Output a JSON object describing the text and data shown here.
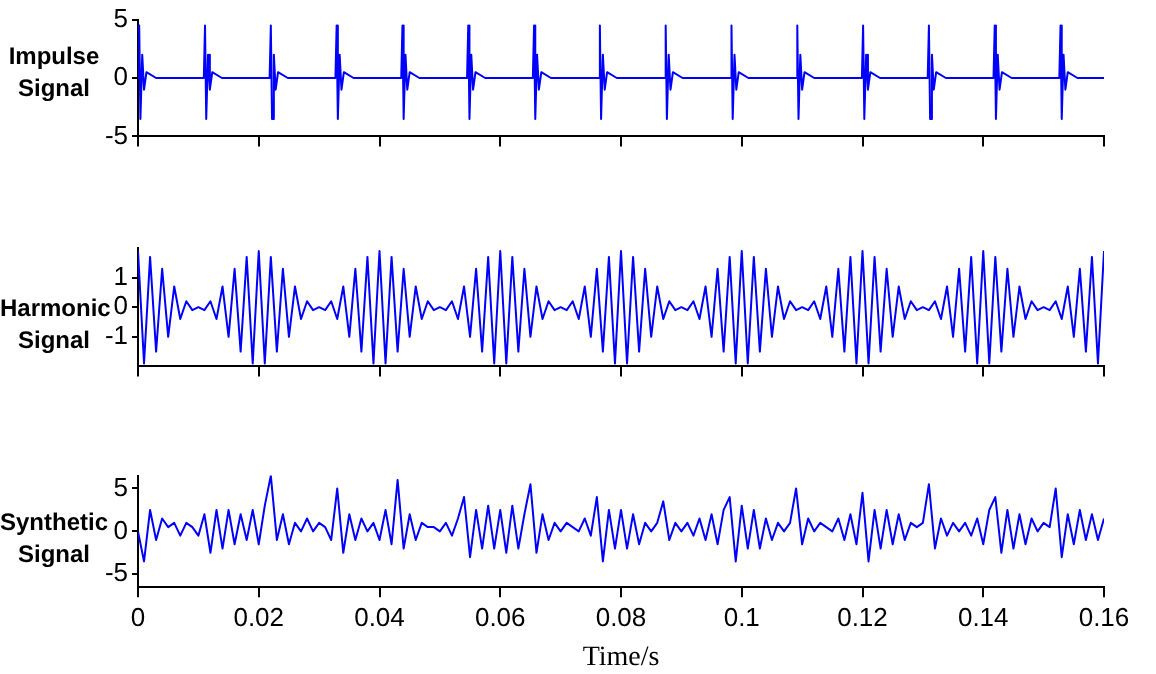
{
  "chart_data": [
    {
      "type": "line",
      "ylabel": "Impulse Signal",
      "color": "#0000ff",
      "grid": false,
      "tick_labels": "y",
      "xlim": [
        0,
        0.16
      ],
      "xticks": [
        0,
        0.02,
        0.04,
        0.06,
        0.08,
        0.1,
        0.12,
        0.14,
        0.16
      ],
      "ylim": [
        -5,
        5
      ],
      "yticks": [
        -5,
        0,
        5
      ],
      "x": [
        0,
        0.0002,
        0.0004,
        0.0007,
        0.001,
        0.0014,
        0.003,
        0.0109,
        0.0111,
        0.0113,
        0.0116,
        0.0119,
        0.0123,
        0.0139,
        0.0218,
        0.022,
        0.0222,
        0.0225,
        0.0228,
        0.0232,
        0.0248,
        0.0327,
        0.0329,
        0.0331,
        0.0334,
        0.0337,
        0.0341,
        0.0357,
        0.0436,
        0.0438,
        0.044,
        0.0443,
        0.0446,
        0.045,
        0.0466,
        0.0545,
        0.0547,
        0.0549,
        0.0552,
        0.0555,
        0.0559,
        0.0575,
        0.0654,
        0.0656,
        0.0658,
        0.0661,
        0.0664,
        0.0668,
        0.0684,
        0.0763,
        0.0765,
        0.0767,
        0.077,
        0.0773,
        0.0777,
        0.0793,
        0.0872,
        0.0874,
        0.0876,
        0.0879,
        0.0882,
        0.0886,
        0.0902,
        0.0981,
        0.0983,
        0.0985,
        0.0988,
        0.0991,
        0.0995,
        0.1011,
        0.109,
        0.1092,
        0.1094,
        0.1097,
        0.11,
        0.1104,
        0.112,
        0.1199,
        0.1201,
        0.1203,
        0.1206,
        0.1209,
        0.1213,
        0.1229,
        0.1308,
        0.131,
        0.1312,
        0.1315,
        0.1318,
        0.1322,
        0.1338,
        0.1417,
        0.1419,
        0.1421,
        0.1424,
        0.1427,
        0.1431,
        0.1447,
        0.1526,
        0.1528,
        0.153,
        0.1533,
        0.1536,
        0.154,
        0.1556,
        0.16
      ],
      "values": [
        0,
        4.5,
        -3.5,
        2,
        -1,
        0.5,
        0,
        0,
        4.5,
        -3.5,
        2,
        -1,
        0.5,
        0,
        0,
        4.5,
        -3.5,
        2,
        -1,
        0.5,
        0,
        0,
        4.5,
        -3.5,
        2,
        -1,
        0.5,
        0,
        0,
        4.5,
        -3.5,
        2,
        -1,
        0.5,
        0,
        0,
        4.5,
        -3.5,
        2,
        -1,
        0.5,
        0,
        0,
        4.5,
        -3.5,
        2,
        -1,
        0.5,
        0,
        0,
        4.5,
        -3.5,
        2,
        -1,
        0.5,
        0,
        0,
        4.5,
        -3.5,
        2,
        -1,
        0.5,
        0,
        0,
        4.5,
        -3.5,
        2,
        -1,
        0.5,
        0,
        0,
        4.5,
        -3.5,
        2,
        -1,
        0.5,
        0,
        0,
        4.5,
        -3.5,
        2,
        -1,
        0.5,
        0,
        0,
        4.5,
        -3.5,
        2,
        -1,
        0.5,
        0,
        0,
        4.5,
        -3.5,
        2,
        -1,
        0.5,
        0,
        0,
        4.5,
        -3.5,
        2,
        -1,
        0.5,
        0,
        0
      ]
    },
    {
      "type": "line",
      "ylabel": "Harmonic Signal",
      "color": "#0000ff",
      "grid": false,
      "tick_labels": "y",
      "xlim": [
        0,
        0.16
      ],
      "xticks": [
        0,
        0.02,
        0.04,
        0.06,
        0.08,
        0.1,
        0.12,
        0.14,
        0.16
      ],
      "ylim": [
        -2,
        2
      ],
      "yticks": [
        -1,
        0,
        1
      ],
      "x": [
        0,
        0.001,
        0.002,
        0.003,
        0.004,
        0.005,
        0.006,
        0.007,
        0.008,
        0.009,
        0.01,
        0.011,
        0.012,
        0.013,
        0.014,
        0.015,
        0.016,
        0.017,
        0.018,
        0.019,
        0.02,
        0.021,
        0.022,
        0.023,
        0.024,
        0.025,
        0.026,
        0.027,
        0.028,
        0.029,
        0.03,
        0.031,
        0.032,
        0.033,
        0.034,
        0.035,
        0.036,
        0.037,
        0.038,
        0.039,
        0.04,
        0.041,
        0.042,
        0.043,
        0.044,
        0.045,
        0.046,
        0.047,
        0.048,
        0.049,
        0.05,
        0.051,
        0.052,
        0.053,
        0.054,
        0.055,
        0.056,
        0.057,
        0.058,
        0.059,
        0.06,
        0.061,
        0.062,
        0.063,
        0.064,
        0.065,
        0.066,
        0.067,
        0.068,
        0.069,
        0.07,
        0.071,
        0.072,
        0.073,
        0.074,
        0.075,
        0.076,
        0.077,
        0.078,
        0.079,
        0.08,
        0.081,
        0.082,
        0.083,
        0.084,
        0.085,
        0.086,
        0.087,
        0.088,
        0.089,
        0.09,
        0.091,
        0.092,
        0.093,
        0.094,
        0.095,
        0.096,
        0.097,
        0.098,
        0.099,
        0.1,
        0.101,
        0.102,
        0.103,
        0.104,
        0.105,
        0.106,
        0.107,
        0.108,
        0.109,
        0.11,
        0.111,
        0.112,
        0.113,
        0.114,
        0.115,
        0.116,
        0.117,
        0.118,
        0.119,
        0.12,
        0.121,
        0.122,
        0.123,
        0.124,
        0.125,
        0.126,
        0.127,
        0.128,
        0.129,
        0.13,
        0.131,
        0.132,
        0.133,
        0.134,
        0.135,
        0.136,
        0.137,
        0.138,
        0.139,
        0.14,
        0.141,
        0.142,
        0.143,
        0.144,
        0.145,
        0.146,
        0.147,
        0.148,
        0.149,
        0.15,
        0.151,
        0.152,
        0.153,
        0.154,
        0.155,
        0.156,
        0.157,
        0.158,
        0.159,
        0.16
      ],
      "values": [
        1.9,
        -1.9,
        1.7,
        -1.5,
        1.3,
        -1,
        0.7,
        -0.4,
        0.2,
        -0.1,
        0,
        -0.1,
        0.2,
        -0.4,
        0.7,
        -1,
        1.3,
        -1.5,
        1.7,
        -1.9,
        1.9,
        -1.9,
        1.7,
        -1.5,
        1.3,
        -1,
        0.7,
        -0.4,
        0.2,
        -0.1,
        0,
        -0.1,
        0.2,
        -0.4,
        0.7,
        -1,
        1.3,
        -1.5,
        1.7,
        -1.9,
        1.9,
        -1.9,
        1.7,
        -1.5,
        1.3,
        -1,
        0.7,
        -0.4,
        0.2,
        -0.1,
        0,
        -0.1,
        0.2,
        -0.4,
        0.7,
        -1,
        1.3,
        -1.5,
        1.7,
        -1.9,
        1.9,
        -1.9,
        1.7,
        -1.5,
        1.3,
        -1,
        0.7,
        -0.4,
        0.2,
        -0.1,
        0,
        -0.1,
        0.2,
        -0.4,
        0.7,
        -1,
        1.3,
        -1.5,
        1.7,
        -1.9,
        1.9,
        -1.9,
        1.7,
        -1.5,
        1.3,
        -1,
        0.7,
        -0.4,
        0.2,
        -0.1,
        0,
        -0.1,
        0.2,
        -0.4,
        0.7,
        -1,
        1.3,
        -1.5,
        1.7,
        -1.9,
        1.9,
        -1.9,
        1.7,
        -1.5,
        1.3,
        -1,
        0.7,
        -0.4,
        0.2,
        -0.1,
        0,
        -0.1,
        0.2,
        -0.4,
        0.7,
        -1,
        1.3,
        -1.5,
        1.7,
        -1.9,
        1.9,
        -1.9,
        1.7,
        -1.5,
        1.3,
        -1,
        0.7,
        -0.4,
        0.2,
        -0.1,
        0,
        -0.1,
        0.2,
        -0.4,
        0.7,
        -1,
        1.3,
        -1.5,
        1.7,
        -1.9,
        1.9,
        -1.9,
        1.7,
        -1.5,
        1.3,
        -1,
        0.7,
        -0.4,
        0.2,
        -0.1,
        0,
        -0.1,
        0.2,
        -0.4,
        0.7,
        -1,
        1.3,
        -1.5,
        1.7,
        -1.9,
        1.9
      ]
    },
    {
      "type": "line",
      "ylabel": "Synthetic Signal",
      "xlabel": "Time/s",
      "color": "#0000ff",
      "grid": false,
      "xlim": [
        0,
        0.16
      ],
      "xticks": [
        0,
        0.02,
        0.04,
        0.06,
        0.08,
        0.1,
        0.12,
        0.14,
        0.16
      ],
      "ylim": [
        -6.5,
        6.5
      ],
      "yticks": [
        -5,
        0,
        5
      ],
      "x": [
        0,
        0.001,
        0.002,
        0.003,
        0.004,
        0.005,
        0.006,
        0.007,
        0.008,
        0.009,
        0.01,
        0.011,
        0.012,
        0.013,
        0.014,
        0.015,
        0.016,
        0.017,
        0.018,
        0.019,
        0.02,
        0.021,
        0.022,
        0.023,
        0.024,
        0.025,
        0.026,
        0.027,
        0.028,
        0.029,
        0.03,
        0.031,
        0.032,
        0.033,
        0.034,
        0.035,
        0.036,
        0.037,
        0.038,
        0.039,
        0.04,
        0.041,
        0.042,
        0.043,
        0.044,
        0.045,
        0.046,
        0.047,
        0.048,
        0.049,
        0.05,
        0.051,
        0.052,
        0.053,
        0.054,
        0.055,
        0.056,
        0.057,
        0.058,
        0.059,
        0.06,
        0.061,
        0.062,
        0.063,
        0.064,
        0.065,
        0.066,
        0.067,
        0.068,
        0.069,
        0.07,
        0.071,
        0.072,
        0.073,
        0.074,
        0.075,
        0.076,
        0.077,
        0.078,
        0.079,
        0.08,
        0.081,
        0.082,
        0.083,
        0.084,
        0.085,
        0.086,
        0.087,
        0.088,
        0.089,
        0.09,
        0.091,
        0.092,
        0.093,
        0.094,
        0.095,
        0.096,
        0.097,
        0.098,
        0.099,
        0.1,
        0.101,
        0.102,
        0.103,
        0.104,
        0.105,
        0.106,
        0.107,
        0.108,
        0.109,
        0.11,
        0.111,
        0.112,
        0.113,
        0.114,
        0.115,
        0.116,
        0.117,
        0.118,
        0.119,
        0.12,
        0.121,
        0.122,
        0.123,
        0.124,
        0.125,
        0.126,
        0.127,
        0.128,
        0.129,
        0.13,
        0.131,
        0.132,
        0.133,
        0.134,
        0.135,
        0.136,
        0.137,
        0.138,
        0.139,
        0.14,
        0.141,
        0.142,
        0.143,
        0.144,
        0.145,
        0.146,
        0.147,
        0.148,
        0.149,
        0.15,
        0.151,
        0.152,
        0.153,
        0.154,
        0.155,
        0.156,
        0.157,
        0.158,
        0.159,
        0.16
      ],
      "values": [
        0,
        -3.5,
        2.5,
        -1,
        1.5,
        0.5,
        1,
        -0.5,
        1,
        0.5,
        -0.5,
        2,
        -2.5,
        2.5,
        -2,
        2.5,
        -1.5,
        2,
        -1,
        2.5,
        -1.5,
        3,
        6.5,
        -1,
        2,
        -1.5,
        1,
        0,
        1.5,
        0,
        1,
        0.5,
        -1,
        5,
        -2.5,
        2,
        -1,
        1.5,
        0,
        1,
        -1,
        2.5,
        -1.5,
        6,
        -2,
        2,
        -1,
        1,
        0.5,
        0.5,
        0,
        1,
        -0.5,
        1.5,
        4,
        -3,
        2.5,
        -2,
        3,
        -2,
        2.5,
        -2.5,
        3,
        -2,
        2,
        5.5,
        -2.5,
        2,
        -1,
        1,
        0,
        1,
        0.5,
        0,
        1.5,
        -0.5,
        4,
        -3.5,
        2.5,
        -2,
        2.5,
        -2,
        2,
        -1.5,
        1,
        0,
        1,
        3.5,
        -1,
        1,
        0,
        1,
        -0.5,
        1.5,
        -1,
        2,
        -1.5,
        2.5,
        4,
        -3.5,
        3,
        -2,
        2.5,
        -2,
        1.5,
        -1,
        1,
        0,
        1,
        5,
        -1.5,
        1.5,
        0,
        1,
        0.5,
        0,
        1.5,
        -1,
        2,
        -1.5,
        4.5,
        -3.5,
        2.5,
        -2,
        2.5,
        -1.5,
        2,
        -1,
        1,
        0.5,
        1,
        5.5,
        -2,
        1.5,
        -0.5,
        1,
        0,
        1,
        -0.5,
        1.5,
        -1.5,
        2.5,
        4,
        -2.5,
        2.5,
        -2,
        2,
        -1.5,
        1.5,
        0,
        1,
        0.5,
        5,
        -3,
        2,
        -1.5,
        2.5,
        -1,
        2,
        -1,
        1.5
      ]
    }
  ]
}
